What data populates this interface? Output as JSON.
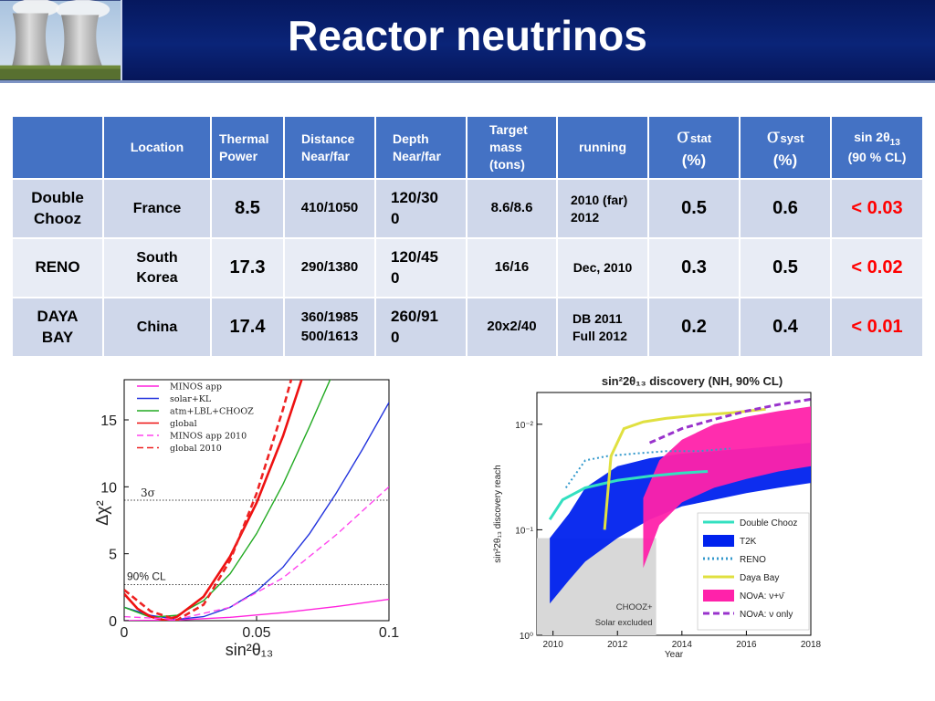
{
  "title": "Reactor neutrinos",
  "table": {
    "headers": {
      "location": "Location",
      "thermal_power": [
        "Thermal",
        "Power"
      ],
      "distance": [
        "Distance",
        "Near/far"
      ],
      "depth": [
        "Depth",
        "Near/far"
      ],
      "target_mass": [
        "Target",
        "mass",
        "(tons)"
      ],
      "running": "running",
      "sigma_stat": {
        "symbol": "σ",
        "sub": "stat",
        "unit": "(%)"
      },
      "sigma_syst": {
        "symbol": "σ",
        "sub": "syst",
        "unit": "(%)"
      },
      "sin": {
        "prefix": "sin 2",
        "theta": "θ",
        "sub": "13",
        "cl": "(90 % CL)"
      }
    },
    "rows": [
      {
        "name": [
          "Double",
          "Chooz"
        ],
        "location": [
          "France"
        ],
        "power": "8.5",
        "distance": [
          "410/1050"
        ],
        "depth": [
          "120/30",
          "0"
        ],
        "mass": "8.6/8.6",
        "running": [
          "2010 (far)",
          "2012"
        ],
        "stat": "0.5",
        "syst": "0.6",
        "sin": "< 0.03"
      },
      {
        "name": [
          "RENO"
        ],
        "location": [
          "South",
          "Korea"
        ],
        "power": "17.3",
        "distance": [
          "290/1380"
        ],
        "depth": [
          "120/45",
          "0"
        ],
        "mass": "16/16",
        "running": [
          "Dec, 2010"
        ],
        "stat": "0.3",
        "syst": "0.5",
        "sin": "< 0.02"
      },
      {
        "name": [
          "DAYA",
          "BAY"
        ],
        "location": [
          "China"
        ],
        "power": "17.4",
        "distance": [
          "360/1985",
          "500/1613"
        ],
        "depth": [
          "260/91",
          "0"
        ],
        "mass": "20x2/40",
        "running": [
          "DB 2011",
          "Full 2012"
        ],
        "stat": "0.2",
        "syst": "0.4",
        "sin": "< 0.01"
      }
    ]
  },
  "chart_data": [
    {
      "type": "line",
      "xlabel": "sin²θ₁₃",
      "ylabel": "Δχ²",
      "xlim": [
        0,
        0.1
      ],
      "ylim": [
        0,
        18
      ],
      "xticks": [
        "0",
        "0.05",
        "0.1"
      ],
      "yticks": [
        "0",
        "5",
        "10",
        "15"
      ],
      "annotations": [
        "3σ",
        "90% CL"
      ],
      "reference_lines": [
        {
          "label": "3σ",
          "y": 9
        },
        {
          "label": "90% CL",
          "y": 2.7
        }
      ],
      "series": [
        {
          "name": "MINOS app",
          "color": "#ff22dd",
          "style": "solid",
          "x": [
            0,
            0.02,
            0.04,
            0.06,
            0.08,
            0.1
          ],
          "y": [
            0,
            0.05,
            0.25,
            0.6,
            1.05,
            1.6
          ]
        },
        {
          "name": "solar+KL",
          "color": "#2233dd",
          "style": "solid",
          "x": [
            0,
            0.01,
            0.02,
            0.03,
            0.04,
            0.05,
            0.06,
            0.07,
            0.08,
            0.09,
            0.1
          ],
          "y": [
            1.0,
            0.4,
            0.1,
            0.3,
            1.0,
            2.2,
            4.0,
            6.5,
            9.5,
            12.8,
            16.3
          ]
        },
        {
          "name": "atm+LBL+CHOOZ",
          "color": "#22aa22",
          "style": "solid",
          "x": [
            0,
            0.01,
            0.02,
            0.03,
            0.04,
            0.05,
            0.06,
            0.07,
            0.08,
            0.09
          ],
          "y": [
            1.0,
            0.25,
            0.4,
            1.5,
            3.5,
            6.5,
            10.2,
            14.5,
            19.0,
            24.0
          ]
        },
        {
          "name": "global",
          "color": "#ee1111",
          "style": "solid",
          "x": [
            0,
            0.005,
            0.01,
            0.015,
            0.02,
            0.03,
            0.04,
            0.05,
            0.06,
            0.07
          ],
          "y": [
            2.0,
            0.9,
            0.3,
            0.05,
            0.3,
            1.8,
            4.8,
            8.8,
            13.8,
            19.8
          ]
        },
        {
          "name": "MINOS app 2010",
          "color": "#ff44ee",
          "style": "dashed",
          "x": [
            0,
            0.02,
            0.04,
            0.06,
            0.08,
            0.1
          ],
          "y": [
            0.3,
            0.1,
            1.0,
            3.2,
            6.4,
            10.0
          ]
        },
        {
          "name": "global 2010",
          "color": "#ee2222",
          "style": "dashed",
          "x": [
            0,
            0.01,
            0.02,
            0.03,
            0.04,
            0.05,
            0.06,
            0.07
          ],
          "y": [
            2.3,
            0.7,
            0.05,
            1.2,
            4.5,
            9.5,
            15.8,
            23.0
          ]
        }
      ]
    },
    {
      "type": "area",
      "title": "sin²2θ₁₃ discovery (NH, 90% CL)",
      "xlabel": "Year",
      "ylabel": "sin²2θ₁₃ discovery reach",
      "xlim": [
        2009.5,
        2018
      ],
      "xticks": [
        "2010",
        "2012",
        "2014",
        "2016",
        "2018"
      ],
      "yticks": [
        "10⁻²",
        "10⁻¹",
        "10⁰"
      ],
      "annotations": [
        "CHOOZ+",
        "Solar excluded"
      ],
      "series": [
        {
          "name": "Double Chooz",
          "color": "#33e0c0",
          "style": "solid",
          "x": [
            2009.9,
            2010.3,
            2011,
            2012,
            2013,
            2014,
            2014.8
          ],
          "y": [
            0.08,
            0.052,
            0.04,
            0.034,
            0.031,
            0.029,
            0.028
          ]
        },
        {
          "name": "T2K",
          "color": "#0022ee",
          "style": "band",
          "x": [
            2009.9,
            2010.5,
            2011,
            2012,
            2013,
            2014,
            2015,
            2016,
            2017,
            2018
          ],
          "y_upper": [
            0.12,
            0.07,
            0.04,
            0.025,
            0.021,
            0.019,
            0.018,
            0.017,
            0.016,
            0.015
          ],
          "y_lower": [
            0.5,
            0.3,
            0.2,
            0.12,
            0.08,
            0.06,
            0.052,
            0.045,
            0.04,
            0.036
          ]
        },
        {
          "name": "RENO",
          "color": "#3399cc",
          "style": "dotted",
          "x": [
            2010.4,
            2011,
            2011.7,
            2012.5,
            2013.5,
            2014.5,
            2015.5
          ],
          "y": [
            0.04,
            0.022,
            0.02,
            0.019,
            0.018,
            0.018,
            0.017
          ]
        },
        {
          "name": "Daya Bay",
          "color": "#e0e040",
          "style": "solid",
          "x": [
            2011.6,
            2011.8,
            2012.2,
            2012.8,
            2013.5,
            2014.5,
            2015.5,
            2016.6
          ],
          "y": [
            0.1,
            0.02,
            0.011,
            0.0095,
            0.0088,
            0.0082,
            0.0078,
            0.0072
          ]
        },
        {
          "name": "NOνA: ν+ν̄",
          "color": "#ff22aa",
          "style": "band",
          "x": [
            2012.8,
            2013.3,
            2014,
            2015,
            2016,
            2017,
            2018
          ],
          "y_upper": [
            0.05,
            0.022,
            0.014,
            0.01,
            0.0085,
            0.0075,
            0.0068
          ],
          "y_lower": [
            0.23,
            0.09,
            0.055,
            0.04,
            0.033,
            0.028,
            0.025
          ]
        },
        {
          "name": "NOνA: ν only",
          "color": "#9933cc",
          "style": "dashed",
          "x": [
            2013,
            2014,
            2015,
            2016,
            2017,
            2018
          ],
          "y": [
            0.015,
            0.011,
            0.009,
            0.0075,
            0.0065,
            0.0058
          ]
        }
      ],
      "regions": [
        {
          "label": "CHOOZ+ Solar excluded",
          "color": "#d8d8d8"
        }
      ]
    }
  ]
}
